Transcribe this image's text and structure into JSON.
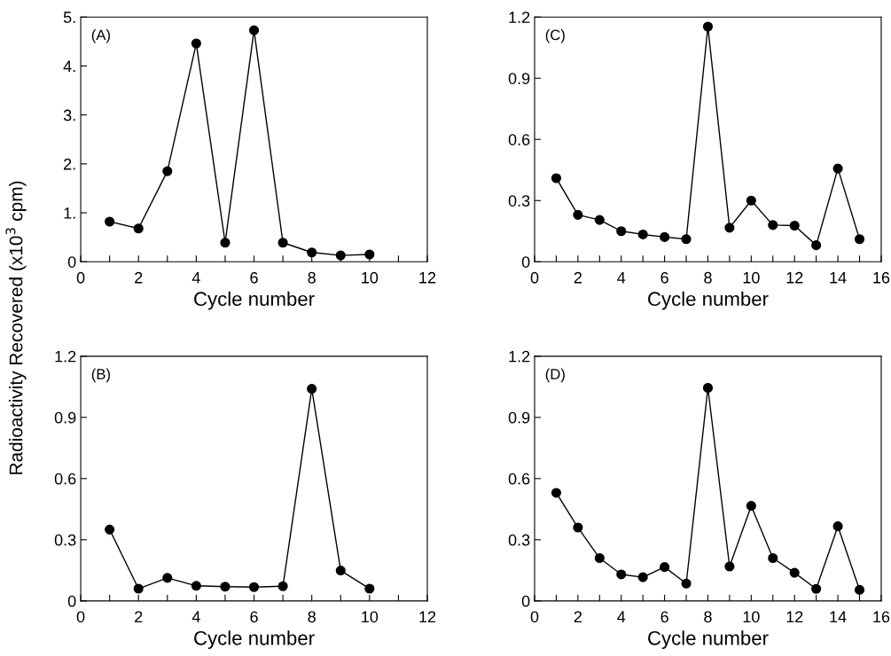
{
  "chart_data": [
    {
      "type": "line",
      "ylabel": "Radioactivity Recovered (x10$^{3}$ cpm)",
      "xlabel": "Cycle number",
      "annotations": [
        "(A)"
      ],
      "marker": "circle",
      "grid": false,
      "legend": false,
      "x": [
        1,
        2,
        3,
        4,
        5,
        6,
        7,
        8,
        9,
        10
      ],
      "series": [
        {
          "color": "#000000",
          "values": [
            0.82,
            0.68,
            1.85,
            4.46,
            0.39,
            4.73,
            0.39,
            0.19,
            0.13,
            0.15
          ]
        }
      ],
      "xlim": [
        0,
        12
      ],
      "xticks": [
        0,
        {
          "value": 1,
          "label": null
        },
        2,
        {
          "value": 3,
          "label": null
        },
        4,
        {
          "value": 5,
          "label": null
        },
        6,
        {
          "value": 7,
          "label": null
        },
        8,
        {
          "value": 9,
          "label": null
        },
        10,
        {
          "value": 11,
          "label": null
        },
        12
      ],
      "ylim": [
        0,
        5
      ],
      "yticks": [
        0,
        {
          "value": 1,
          "label": "1."
        },
        {
          "value": 2,
          "label": "2."
        },
        {
          "value": 3,
          "label": "3."
        },
        {
          "value": 4,
          "label": "4."
        },
        {
          "value": 5,
          "label": "5."
        }
      ]
    },
    {
      "type": "line",
      "xlabel": "Cycle number",
      "annotations": [
        "(C)"
      ],
      "marker": "circle",
      "grid": false,
      "legend": false,
      "x": [
        1,
        2,
        3,
        4,
        5,
        6,
        7,
        8,
        9,
        10,
        11,
        12,
        13,
        14,
        15
      ],
      "series": [
        {
          "color": "#000000",
          "values": [
            0.41,
            0.23,
            0.205,
            0.15,
            0.134,
            0.121,
            0.111,
            1.153,
            0.167,
            0.3,
            0.18,
            0.177,
            0.081,
            0.457,
            0.111
          ]
        }
      ],
      "xlim": [
        0,
        16
      ],
      "xticks": [
        0,
        {
          "value": 1,
          "label": null
        },
        2,
        {
          "value": 3,
          "label": null
        },
        4,
        {
          "value": 5,
          "label": null
        },
        6,
        {
          "value": 7,
          "label": null
        },
        8,
        {
          "value": 9,
          "label": null
        },
        10,
        {
          "value": 11,
          "label": null
        },
        12,
        {
          "value": 13,
          "label": null
        },
        14,
        {
          "value": 15,
          "label": null
        },
        16
      ],
      "ylim": [
        0,
        1.2
      ],
      "yticks": [
        0,
        0.3,
        0.6,
        0.9,
        1.2
      ]
    },
    {
      "type": "line",
      "xlabel": "Cycle number",
      "annotations": [
        "(B)"
      ],
      "marker": "circle",
      "grid": false,
      "legend": false,
      "x": [
        1,
        2,
        3,
        4,
        5,
        6,
        7,
        8,
        9,
        10
      ],
      "series": [
        {
          "color": "#000000",
          "values": [
            0.35,
            0.06,
            0.113,
            0.074,
            0.07,
            0.068,
            0.072,
            1.04,
            0.149,
            0.06
          ]
        }
      ],
      "xlim": [
        0,
        12
      ],
      "xticks": [
        0,
        {
          "value": 1,
          "label": null
        },
        2,
        {
          "value": 3,
          "label": null
        },
        4,
        {
          "value": 5,
          "label": null
        },
        6,
        {
          "value": 7,
          "label": null
        },
        8,
        {
          "value": 9,
          "label": null
        },
        10,
        {
          "value": 11,
          "label": null
        },
        12
      ],
      "ylim": [
        0,
        1.2
      ],
      "yticks": [
        0,
        0.3,
        0.6,
        0.9,
        1.2
      ]
    },
    {
      "type": "line",
      "xlabel": "Cycle number",
      "annotations": [
        "(D)"
      ],
      "marker": "circle",
      "grid": false,
      "legend": false,
      "x": [
        1,
        2,
        3,
        4,
        5,
        6,
        7,
        8,
        9,
        10,
        11,
        12,
        13,
        14,
        15
      ],
      "series": [
        {
          "color": "#000000",
          "values": [
            0.53,
            0.36,
            0.21,
            0.13,
            0.116,
            0.166,
            0.085,
            1.045,
            0.169,
            0.466,
            0.21,
            0.138,
            0.059,
            0.366,
            0.054
          ]
        }
      ],
      "xlim": [
        0,
        16
      ],
      "xticks": [
        0,
        {
          "value": 1,
          "label": null
        },
        2,
        {
          "value": 3,
          "label": null
        },
        4,
        {
          "value": 5,
          "label": null
        },
        6,
        {
          "value": 7,
          "label": null
        },
        8,
        {
          "value": 9,
          "label": null
        },
        10,
        {
          "value": 11,
          "label": null
        },
        12,
        {
          "value": 13,
          "label": null
        },
        14,
        {
          "value": 15,
          "label": null
        },
        16
      ],
      "ylim": [
        0,
        1.2
      ],
      "yticks": [
        0,
        0.3,
        0.6,
        0.9,
        1.2
      ]
    }
  ]
}
